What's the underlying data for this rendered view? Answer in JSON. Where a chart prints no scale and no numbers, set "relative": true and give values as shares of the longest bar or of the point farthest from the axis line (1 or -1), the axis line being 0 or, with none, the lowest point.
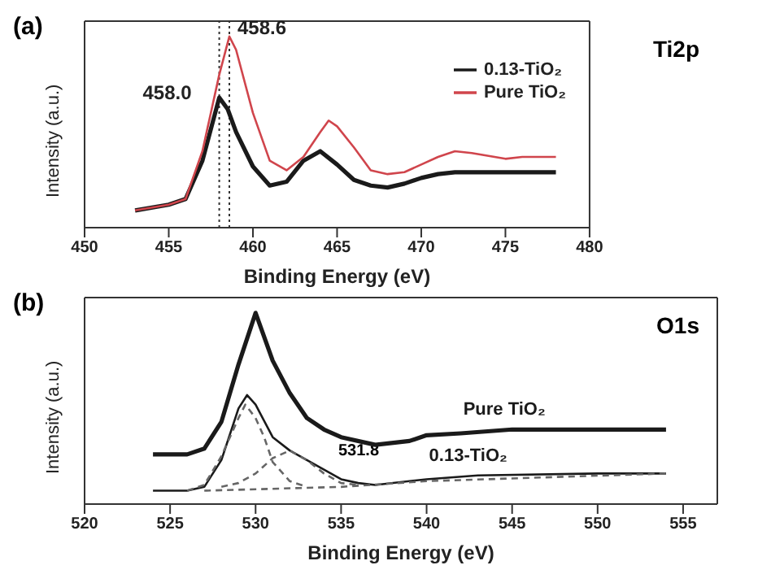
{
  "chart_data": [
    {
      "type": "line",
      "title": "(a)",
      "xlabel": "Binding Energy (eV)",
      "ylabel": "Intensity (a.u.)",
      "relative": true,
      "xlim": [
        450,
        480
      ],
      "xticks": [
        450,
        455,
        460,
        465,
        470,
        475,
        480
      ],
      "tick_labels": "x",
      "legend": "top right",
      "marker": "none",
      "annotations": [
        "Ti2p"
      ],
      "ref_lines": [
        {
          "axis": "x",
          "value": 458.0,
          "label": "458.0",
          "line_style": "dotted",
          "color": "#333333"
        },
        {
          "axis": "x",
          "value": 458.6,
          "label": "458.6",
          "line_style": "dotted",
          "color": "#333333"
        }
      ],
      "series": [
        {
          "name": "0.13-TiO₂",
          "color": "#1a1a1a",
          "x": [
            453,
            455,
            456,
            457,
            458,
            458.5,
            459,
            460,
            461,
            462,
            463,
            464,
            465,
            466,
            467,
            468,
            469,
            470,
            471,
            472,
            475,
            478
          ],
          "values": [
            0.09,
            0.12,
            0.15,
            0.35,
            0.68,
            0.62,
            0.5,
            0.32,
            0.22,
            0.24,
            0.35,
            0.4,
            0.33,
            0.25,
            0.22,
            0.21,
            0.23,
            0.26,
            0.28,
            0.29,
            0.29,
            0.29
          ]
        },
        {
          "name": "Pure TiO₂",
          "color": "#d0454c",
          "x": [
            453,
            455,
            456,
            457,
            458,
            458.6,
            459,
            460,
            461,
            462,
            463,
            464,
            464.5,
            465,
            466,
            467,
            468,
            469,
            470,
            471,
            472,
            473,
            475,
            476,
            478
          ],
          "values": [
            0.09,
            0.12,
            0.15,
            0.4,
            0.8,
            1.0,
            0.93,
            0.6,
            0.35,
            0.3,
            0.37,
            0.5,
            0.56,
            0.53,
            0.42,
            0.3,
            0.28,
            0.29,
            0.33,
            0.37,
            0.4,
            0.39,
            0.36,
            0.37,
            0.37
          ]
        }
      ]
    },
    {
      "type": "line",
      "title": "(b)",
      "xlabel": "Binding Energy (eV)",
      "ylabel": "Intensity (a.u.)",
      "relative": true,
      "xlim": [
        520,
        557
      ],
      "xticks": [
        520,
        525,
        530,
        535,
        540,
        545,
        550,
        555
      ],
      "tick_labels": "x",
      "legend": false,
      "marker": "none",
      "annotations": [
        "O1s",
        "531.8"
      ],
      "series": [
        {
          "name": "Pure TiO₂",
          "color": "#1a1a1a",
          "x": [
            524,
            526,
            527,
            528,
            529,
            530,
            531,
            532,
            533,
            534,
            535,
            537,
            539,
            540,
            542,
            545,
            550,
            554
          ],
          "values": [
            0.26,
            0.26,
            0.29,
            0.43,
            0.73,
            1.0,
            0.75,
            0.58,
            0.45,
            0.39,
            0.35,
            0.31,
            0.33,
            0.36,
            0.37,
            0.39,
            0.39,
            0.39
          ]
        },
        {
          "name": "0.13-TiO₂",
          "color": "#1a1a1a",
          "x": [
            524,
            526,
            527,
            528,
            529,
            529.5,
            530,
            531,
            532,
            533,
            534,
            535,
            536,
            537,
            540,
            543,
            550,
            554
          ],
          "values": [
            0.07,
            0.07,
            0.09,
            0.23,
            0.5,
            0.57,
            0.52,
            0.35,
            0.28,
            0.23,
            0.18,
            0.13,
            0.11,
            0.1,
            0.13,
            0.15,
            0.16,
            0.16
          ]
        },
        {
          "color": "#666666",
          "line_style": "dashed",
          "x": [
            526,
            527,
            528,
            529,
            529.4,
            530,
            530.5,
            531,
            532,
            533
          ],
          "values": [
            0.07,
            0.1,
            0.25,
            0.45,
            0.52,
            0.45,
            0.35,
            0.22,
            0.12,
            0.09
          ]
        },
        {
          "color": "#666666",
          "line_style": "dashed",
          "x": [
            528,
            529,
            530,
            531,
            532,
            533,
            534,
            535,
            536
          ],
          "values": [
            0.09,
            0.11,
            0.16,
            0.24,
            0.28,
            0.23,
            0.16,
            0.11,
            0.1
          ]
        },
        {
          "color": "#666666",
          "line_style": "dashed",
          "x": [
            527,
            535,
            540,
            554
          ],
          "values": [
            0.07,
            0.09,
            0.12,
            0.16
          ]
        }
      ]
    }
  ]
}
